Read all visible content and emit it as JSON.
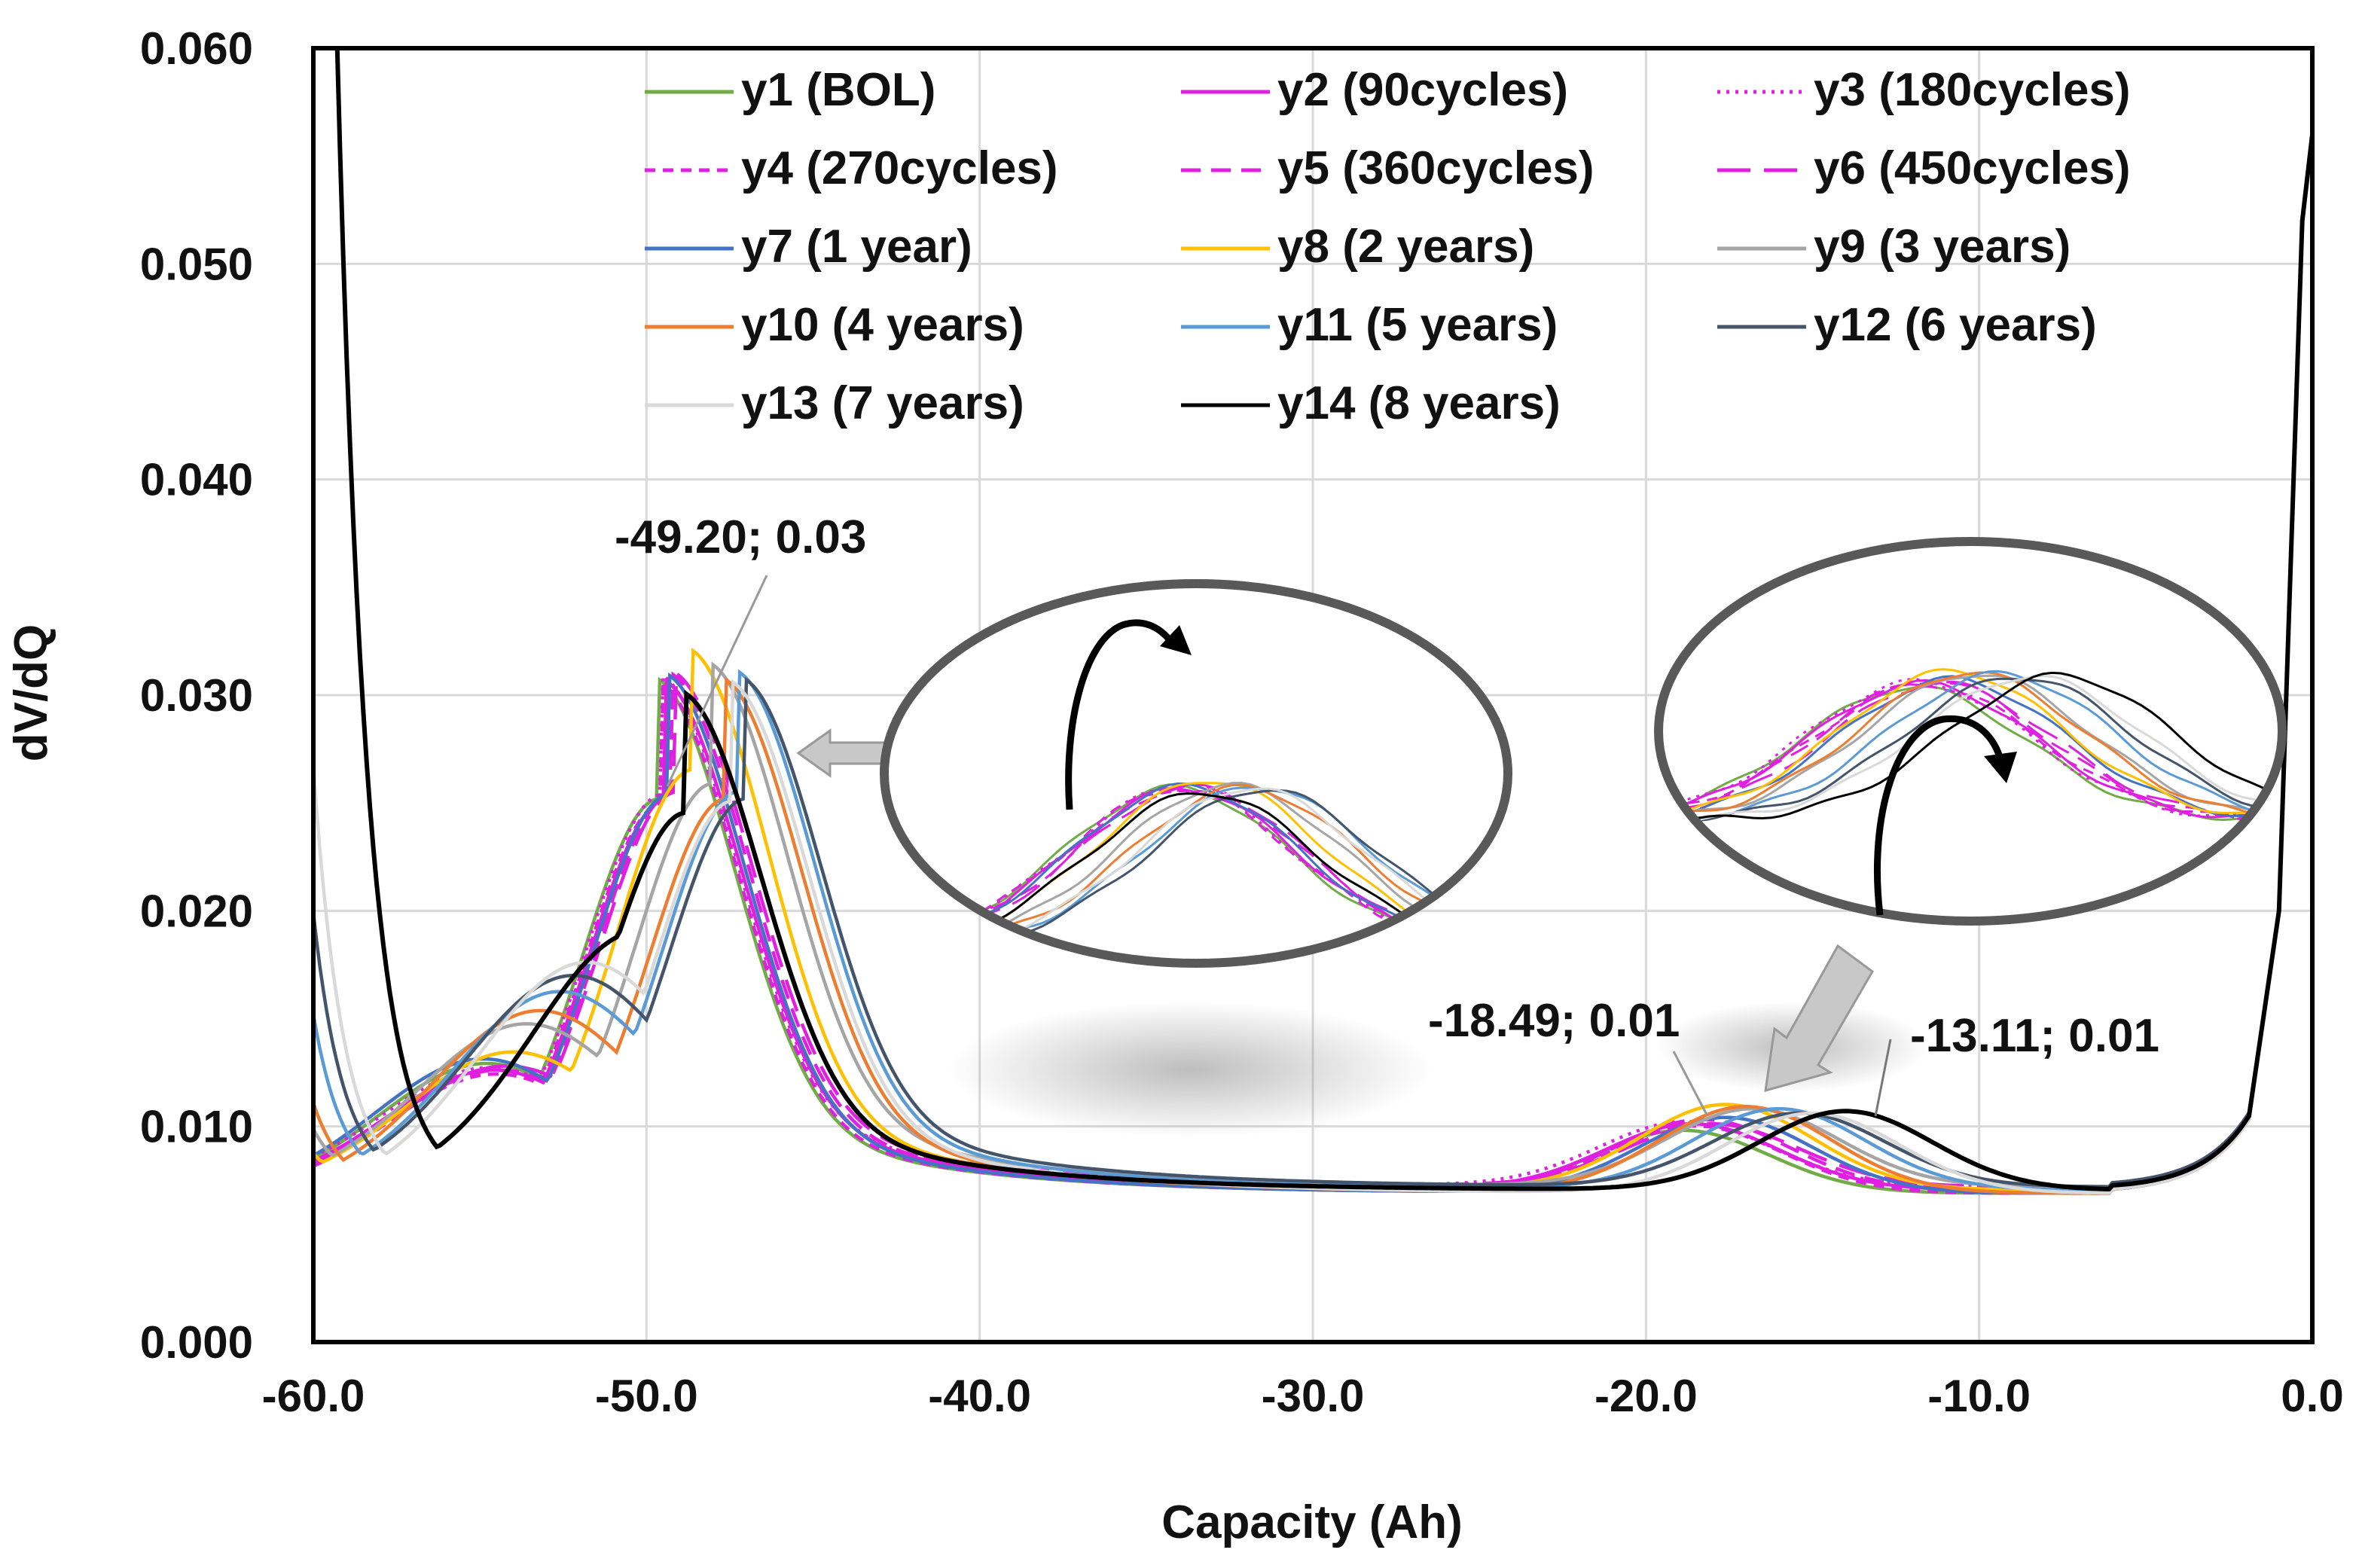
{
  "chart_data": {
    "type": "line",
    "xlabel": "Capacity (Ah)",
    "ylabel": "dV/dQ",
    "xlim": [
      -60,
      0
    ],
    "ylim": [
      0,
      0.06
    ],
    "x_ticks": [
      "-60.0",
      "-50.0",
      "-40.0",
      "-30.0",
      "-20.0",
      "-10.0",
      "0.0"
    ],
    "y_ticks": [
      "0.000",
      "0.010",
      "0.020",
      "0.030",
      "0.040",
      "0.050",
      "0.060"
    ],
    "grid": true,
    "legend_position": "top-right, inside plot, 3 columns",
    "series": [
      {
        "name": "y1 (BOL)",
        "color": "#70AD47",
        "dash": "solid",
        "peak1": [
          -49.6,
          0.0258
        ],
        "min1": [
          -54.8,
          0.0155
        ],
        "peak2": [
          -18.9,
          0.0098
        ],
        "valley_x": -27.5
      },
      {
        "name": "y2 (90cycles)",
        "color": "#E020E0",
        "dash": "solid",
        "peak1": [
          -49.4,
          0.0256
        ],
        "min1": [
          -54.6,
          0.015
        ],
        "peak2": [
          -18.6,
          0.0101
        ],
        "valley_x": -27.5
      },
      {
        "name": "y3 (180cycles)",
        "color": "#E020E0",
        "dash": "dotted",
        "peak1": [
          -49.5,
          0.0257
        ],
        "min1": [
          -54.7,
          0.0151
        ],
        "peak2": [
          -18.8,
          0.0102
        ],
        "valley_x": -27.5
      },
      {
        "name": "y4 (270cycles)",
        "color": "#E020E0",
        "dash": "short-dash",
        "peak1": [
          -49.5,
          0.0256
        ],
        "min1": [
          -54.5,
          0.0148
        ],
        "peak2": [
          -18.5,
          0.01
        ],
        "valley_x": -27.5
      },
      {
        "name": "y5 (360cycles)",
        "color": "#E020E0",
        "dash": "dash",
        "peak1": [
          -49.2,
          0.0259
        ],
        "min1": [
          -54.4,
          0.015
        ],
        "peak2": [
          -18.3,
          0.0103
        ],
        "valley_x": -27.3
      },
      {
        "name": "y6 (450cycles)",
        "color": "#E020E0",
        "dash": "long-dash",
        "peak1": [
          -49.1,
          0.0258
        ],
        "min1": [
          -54.2,
          0.0152
        ],
        "peak2": [
          -18.0,
          0.0101
        ],
        "valley_x": -27.2
      },
      {
        "name": "y7 (1 year)",
        "color": "#4472C4",
        "dash": "solid",
        "peak1": [
          -49.3,
          0.026
        ],
        "min1": [
          -54.9,
          0.0158
        ],
        "peak2": [
          -17.6,
          0.0104
        ],
        "valley_x": -27.0
      },
      {
        "name": "y8 (2 years)",
        "color": "#FFC000",
        "dash": "solid",
        "peak1": [
          -48.6,
          0.027
        ],
        "min1": [
          -54.0,
          0.0162
        ],
        "peak2": [
          -17.6,
          0.011
        ],
        "valley_x": -26.8
      },
      {
        "name": "y9 (3 years)",
        "color": "#A5A5A5",
        "dash": "solid",
        "peak1": [
          -48.0,
          0.0262
        ],
        "min1": [
          -53.6,
          0.018
        ],
        "peak2": [
          -16.8,
          0.0108
        ],
        "valley_x": -26.5
      },
      {
        "name": "y10 (4 years)",
        "color": "#ED7D31",
        "dash": "solid",
        "peak1": [
          -47.6,
          0.0258
        ],
        "min1": [
          -53.2,
          0.019
        ],
        "peak2": [
          -17.0,
          0.0109
        ],
        "valley_x": -26.4
      },
      {
        "name": "y11 (5 years)",
        "color": "#5B9BD5",
        "dash": "solid",
        "peak1": [
          -47.2,
          0.026
        ],
        "min1": [
          -52.6,
          0.0202
        ],
        "peak2": [
          -16.0,
          0.0108
        ],
        "valley_x": -26.2
      },
      {
        "name": "y12 (6 years)",
        "color": "#44546A",
        "dash": "solid",
        "peak1": [
          -47.0,
          0.0255
        ],
        "min1": [
          -52.2,
          0.0212
        ],
        "peak2": [
          -15.4,
          0.0106
        ],
        "valley_x": -26.0
      },
      {
        "name": "y13 (7 years)",
        "color": "#D9D9D9",
        "dash": "solid",
        "peak1": [
          -47.4,
          0.0257
        ],
        "min1": [
          -51.8,
          0.0222
        ],
        "peak2": [
          -15.0,
          0.0106
        ],
        "valley_x": -25.8
      },
      {
        "name": "y14 (8 years)",
        "color": "#000000",
        "dash": "solid",
        "peak1": [
          -48.8,
          0.025
        ],
        "min1": [
          -50.2,
          0.0242
        ],
        "peak2": [
          -14.0,
          0.0107
        ],
        "valley_x": -25.5
      }
    ],
    "annotations": [
      {
        "text": "-49.20; 0.03",
        "point": [
          -49.2,
          0.0255
        ]
      },
      {
        "text": "-18.49; 0.01",
        "point": [
          -18.49,
          0.0102
        ]
      },
      {
        "text": "-13.11; 0.01",
        "point": [
          -13.11,
          0.0107
        ]
      }
    ],
    "insets": [
      {
        "name": "zoom of first peak",
        "around_x": -49
      },
      {
        "name": "zoom of second peak",
        "around_x": -17
      }
    ]
  }
}
